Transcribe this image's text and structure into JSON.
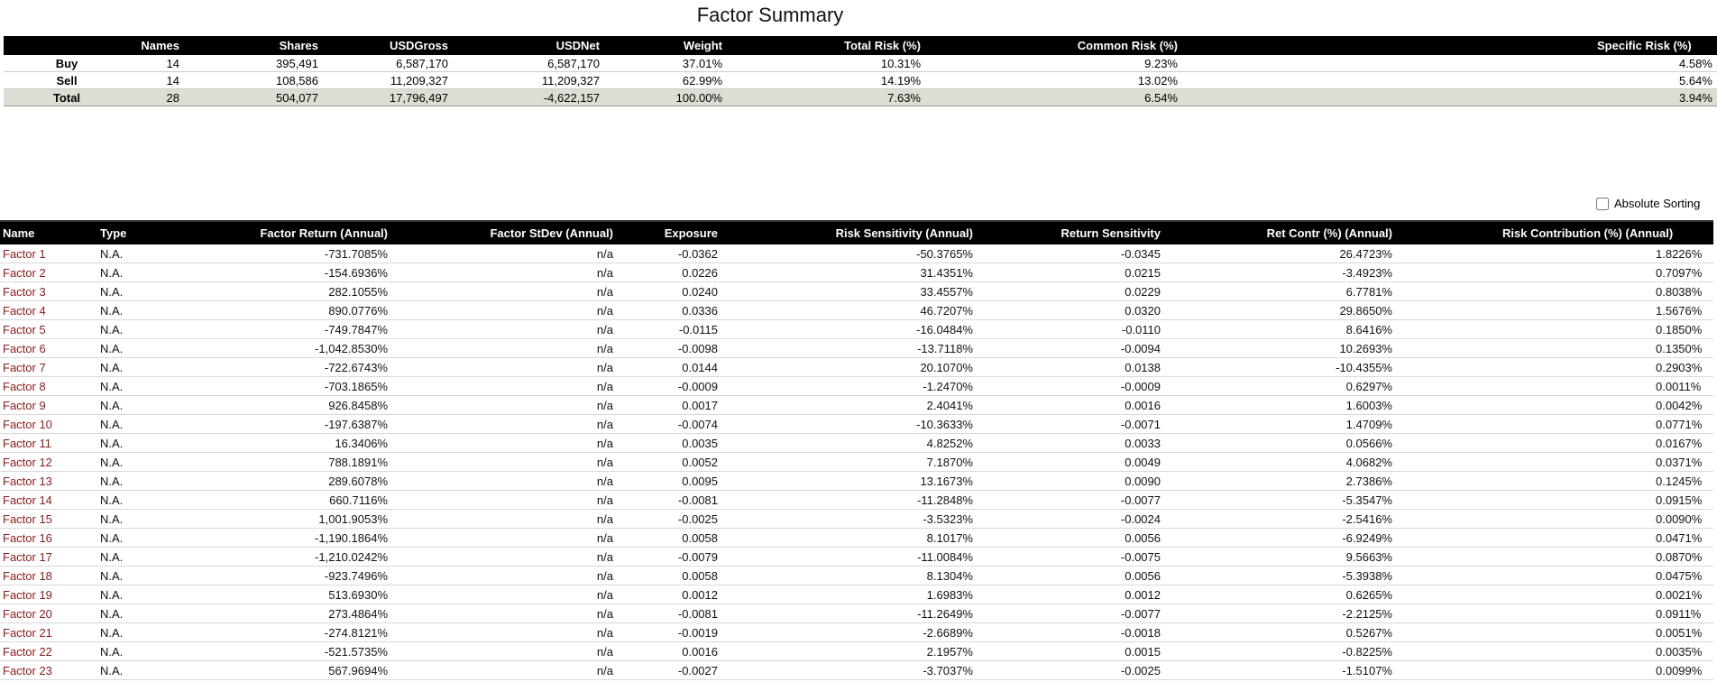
{
  "title": "Factor Summary",
  "summary": {
    "headers": [
      "",
      "Names",
      "Shares",
      "USDGross",
      "USDNet",
      "Weight",
      "Total Risk (%)",
      "Common Risk (%)",
      "Specific Risk (%)"
    ],
    "rows": [
      [
        "Buy",
        "14",
        "395,491",
        "6,587,170",
        "6,587,170",
        "37.01%",
        "10.31%",
        "9.23%",
        "4.58%"
      ],
      [
        "Sell",
        "14",
        "108,586",
        "11,209,327",
        "11,209,327",
        "62.99%",
        "14.19%",
        "13.02%",
        "5.64%"
      ],
      [
        "Total",
        "28",
        "504,077",
        "17,796,497",
        "-4,622,157",
        "100.00%",
        "7.63%",
        "6.54%",
        "3.94%"
      ]
    ]
  },
  "absolute_sorting": {
    "label": "Absolute Sorting",
    "checked": false
  },
  "factors": {
    "headers": [
      "Name",
      "Type",
      "Factor Return (Annual)",
      "Factor StDev (Annual)",
      "Exposure",
      "Risk Sensitivity (Annual)",
      "Return Sensitivity",
      "Ret Contr (%) (Annual)",
      "Risk Contribution (%) (Annual)"
    ],
    "rows": [
      [
        "Factor 1",
        "N.A.",
        "-731.7085%",
        "n/a",
        "-0.0362",
        "-50.3765%",
        "-0.0345",
        "26.4723%",
        "1.8226%"
      ],
      [
        "Factor 2",
        "N.A.",
        "-154.6936%",
        "n/a",
        "0.0226",
        "31.4351%",
        "0.0215",
        "-3.4923%",
        "0.7097%"
      ],
      [
        "Factor 3",
        "N.A.",
        "282.1055%",
        "n/a",
        "0.0240",
        "33.4557%",
        "0.0229",
        "6.7781%",
        "0.8038%"
      ],
      [
        "Factor 4",
        "N.A.",
        "890.0776%",
        "n/a",
        "0.0336",
        "46.7207%",
        "0.0320",
        "29.8650%",
        "1.5676%"
      ],
      [
        "Factor 5",
        "N.A.",
        "-749.7847%",
        "n/a",
        "-0.0115",
        "-16.0484%",
        "-0.0110",
        "8.6416%",
        "0.1850%"
      ],
      [
        "Factor 6",
        "N.A.",
        "-1,042.8530%",
        "n/a",
        "-0.0098",
        "-13.7118%",
        "-0.0094",
        "10.2693%",
        "0.1350%"
      ],
      [
        "Factor 7",
        "N.A.",
        "-722.6743%",
        "n/a",
        "0.0144",
        "20.1070%",
        "0.0138",
        "-10.4355%",
        "0.2903%"
      ],
      [
        "Factor 8",
        "N.A.",
        "-703.1865%",
        "n/a",
        "-0.0009",
        "-1.2470%",
        "-0.0009",
        "0.6297%",
        "0.0011%"
      ],
      [
        "Factor 9",
        "N.A.",
        "926.8458%",
        "n/a",
        "0.0017",
        "2.4041%",
        "0.0016",
        "1.6003%",
        "0.0042%"
      ],
      [
        "Factor 10",
        "N.A.",
        "-197.6387%",
        "n/a",
        "-0.0074",
        "-10.3633%",
        "-0.0071",
        "1.4709%",
        "0.0771%"
      ],
      [
        "Factor 11",
        "N.A.",
        "16.3406%",
        "n/a",
        "0.0035",
        "4.8252%",
        "0.0033",
        "0.0566%",
        "0.0167%"
      ],
      [
        "Factor 12",
        "N.A.",
        "788.1891%",
        "n/a",
        "0.0052",
        "7.1870%",
        "0.0049",
        "4.0682%",
        "0.0371%"
      ],
      [
        "Factor 13",
        "N.A.",
        "289.6078%",
        "n/a",
        "0.0095",
        "13.1673%",
        "0.0090",
        "2.7386%",
        "0.1245%"
      ],
      [
        "Factor 14",
        "N.A.",
        "660.7116%",
        "n/a",
        "-0.0081",
        "-11.2848%",
        "-0.0077",
        "-5.3547%",
        "0.0915%"
      ],
      [
        "Factor 15",
        "N.A.",
        "1,001.9053%",
        "n/a",
        "-0.0025",
        "-3.5323%",
        "-0.0024",
        "-2.5416%",
        "0.0090%"
      ],
      [
        "Factor 16",
        "N.A.",
        "-1,190.1864%",
        "n/a",
        "0.0058",
        "8.1017%",
        "0.0056",
        "-6.9249%",
        "0.0471%"
      ],
      [
        "Factor 17",
        "N.A.",
        "-1,210.0242%",
        "n/a",
        "-0.0079",
        "-11.0084%",
        "-0.0075",
        "9.5663%",
        "0.0870%"
      ],
      [
        "Factor 18",
        "N.A.",
        "-923.7496%",
        "n/a",
        "0.0058",
        "8.1304%",
        "0.0056",
        "-5.3938%",
        "0.0475%"
      ],
      [
        "Factor 19",
        "N.A.",
        "513.6930%",
        "n/a",
        "0.0012",
        "1.6983%",
        "0.0012",
        "0.6265%",
        "0.0021%"
      ],
      [
        "Factor 20",
        "N.A.",
        "273.4864%",
        "n/a",
        "-0.0081",
        "-11.2649%",
        "-0.0077",
        "-2.2125%",
        "0.0911%"
      ],
      [
        "Factor 21",
        "N.A.",
        "-274.8121%",
        "n/a",
        "-0.0019",
        "-2.6689%",
        "-0.0018",
        "0.5267%",
        "0.0051%"
      ],
      [
        "Factor 22",
        "N.A.",
        "-521.5735%",
        "n/a",
        "0.0016",
        "2.1957%",
        "0.0015",
        "-0.8225%",
        "0.0035%"
      ],
      [
        "Factor 23",
        "N.A.",
        "567.9694%",
        "n/a",
        "-0.0027",
        "-3.7037%",
        "-0.0025",
        "-1.5107%",
        "0.0099%"
      ]
    ]
  }
}
